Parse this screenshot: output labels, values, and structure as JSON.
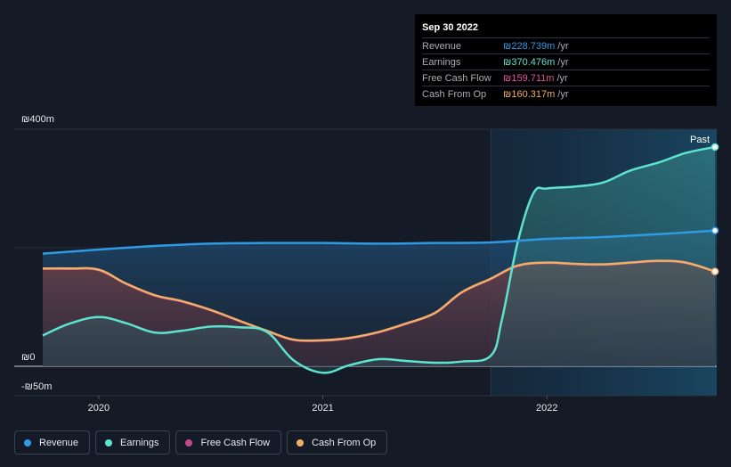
{
  "tooltip": {
    "date": "Sep 30 2022",
    "rows": [
      {
        "label": "Revenue",
        "value": "₪228.739m",
        "unit": "/yr",
        "color": "#2f9ae6"
      },
      {
        "label": "Earnings",
        "value": "₪370.476m",
        "unit": "/yr",
        "color": "#5ee3cf"
      },
      {
        "label": "Free Cash Flow",
        "value": "₪159.711m",
        "unit": "/yr",
        "color": "#e0549d"
      },
      {
        "label": "Cash From Op",
        "value": "₪160.317m",
        "unit": "/yr",
        "color": "#f2ad67"
      }
    ]
  },
  "legend": [
    {
      "label": "Revenue",
      "color": "#2f9ae6"
    },
    {
      "label": "Earnings",
      "color": "#5ee3cf"
    },
    {
      "label": "Free Cash Flow",
      "color": "#c4498b"
    },
    {
      "label": "Cash From Op",
      "color": "#f2ad67"
    }
  ],
  "colors": {
    "background": "#151b26",
    "revenue": "#2f9ae6",
    "earnings": "#5ee3cf",
    "free_cash_flow": "#c4498b",
    "cash_from_op": "#f2ad67",
    "past_region": "#17324a"
  },
  "chart_data": {
    "type": "line",
    "title": "",
    "xlabel": "",
    "ylabel": "",
    "ylim": [
      -50,
      400
    ],
    "y_tick_labels": [
      "₪400m",
      "₪0",
      "-₪50m"
    ],
    "y_tick_values": [
      400,
      0,
      -50
    ],
    "x_tick_labels": [
      "2020",
      "2021",
      "2022"
    ],
    "x_tick_values": [
      2020.0,
      2021.0,
      2022.0
    ],
    "x_range": [
      2019.73,
      2022.75
    ],
    "past_start": 2021.75,
    "past_label": "Past",
    "grid": true,
    "legend_position": "bottom-left",
    "series": [
      {
        "name": "Revenue",
        "key": "revenue",
        "x": [
          2019.75,
          2020.0,
          2020.25,
          2020.5,
          2020.75,
          2021.0,
          2021.25,
          2021.5,
          2021.75,
          2022.0,
          2022.25,
          2022.5,
          2022.75
        ],
        "values": [
          190,
          197,
          203,
          207,
          208,
          208,
          207,
          208,
          209,
          215,
          218,
          223,
          229
        ]
      },
      {
        "name": "Earnings",
        "key": "earnings",
        "x": [
          2019.75,
          2019.87,
          2020.0,
          2020.12,
          2020.25,
          2020.37,
          2020.5,
          2020.62,
          2020.75,
          2020.87,
          2021.0,
          2021.12,
          2021.25,
          2021.37,
          2021.5,
          2021.62,
          2021.75,
          2021.8,
          2021.87,
          2021.94,
          2022.0,
          2022.12,
          2022.25,
          2022.37,
          2022.5,
          2022.62,
          2022.75
        ],
        "values": [
          52,
          72,
          83,
          73,
          57,
          60,
          67,
          66,
          58,
          10,
          -11,
          2,
          12,
          9,
          6,
          8,
          18,
          80,
          210,
          292,
          300,
          303,
          310,
          330,
          344,
          360,
          370
        ]
      },
      {
        "name": "Cash From Op",
        "key": "cash_from_op",
        "x": [
          2019.75,
          2019.87,
          2020.0,
          2020.12,
          2020.25,
          2020.37,
          2020.5,
          2020.62,
          2020.75,
          2020.87,
          2021.0,
          2021.12,
          2021.25,
          2021.37,
          2021.5,
          2021.62,
          2021.75,
          2021.87,
          2022.0,
          2022.12,
          2022.25,
          2022.37,
          2022.5,
          2022.62,
          2022.75
        ],
        "values": [
          165,
          165,
          163,
          140,
          120,
          110,
          95,
          78,
          60,
          45,
          44,
          48,
          58,
          72,
          90,
          125,
          148,
          170,
          175,
          173,
          172,
          175,
          178,
          175,
          160
        ]
      },
      {
        "name": "Free Cash Flow",
        "key": "free_cash_flow",
        "x": [
          2019.75,
          2019.87,
          2020.0,
          2020.12,
          2020.25,
          2020.37,
          2020.5,
          2020.62,
          2020.75,
          2020.87,
          2021.0,
          2021.12,
          2021.25,
          2021.37,
          2021.5,
          2021.62,
          2021.75,
          2021.87,
          2022.0,
          2022.12,
          2022.25,
          2022.37,
          2022.5,
          2022.62,
          2022.75
        ],
        "values": [
          164,
          164,
          162,
          139,
          119,
          109,
          94,
          77,
          59,
          44,
          43,
          47,
          57,
          71,
          89,
          124,
          147,
          169,
          174,
          172,
          171,
          174,
          177,
          174,
          159.7
        ]
      }
    ]
  }
}
